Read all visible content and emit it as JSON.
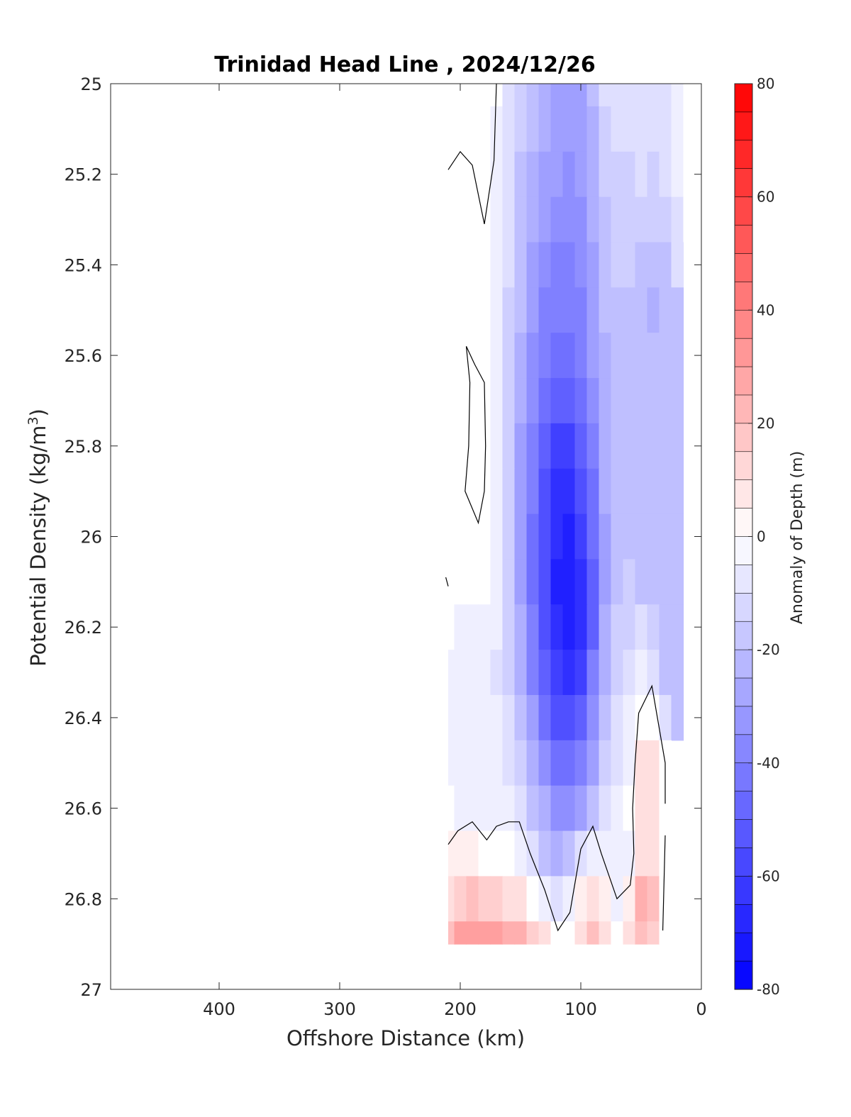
{
  "chart_data": {
    "type": "contour",
    "title": "Trinidad Head Line , 2024/12/26",
    "xlabel": "Offshore Distance (km)",
    "ylabel_main": "Potential Density (kg/m",
    "ylabel_sup": "3",
    "ylabel_close": ")",
    "xlim": [
      490,
      0
    ],
    "ylim": [
      25,
      27
    ],
    "y_reversed": true,
    "x_reversed": true,
    "grid": false,
    "xticks": [
      400,
      300,
      200,
      100,
      0
    ],
    "xtick_labels": [
      "400",
      "300",
      "200",
      "100",
      "0"
    ],
    "yticks": [
      25,
      25.2,
      25.4,
      25.6,
      25.8,
      26,
      26.2,
      26.4,
      26.6,
      26.8,
      27
    ],
    "ytick_labels": [
      "25",
      "25.2",
      "25.4",
      "25.6",
      "25.8",
      "26",
      "26.2",
      "26.4",
      "26.6",
      "26.8",
      "27"
    ],
    "colorbar": {
      "label": "Anomaly of Depth (m)",
      "range": [
        -80,
        80
      ],
      "step": 5,
      "ticks": [
        80,
        60,
        40,
        20,
        0,
        -20,
        -40,
        -60,
        -80
      ],
      "tick_labels": [
        "80",
        "60",
        "40",
        "20",
        "0",
        "-20",
        "-40",
        "-60",
        "-80"
      ],
      "max_color": "#ff0000",
      "mid_color": "#ffffff",
      "min_color": "#0000ff"
    },
    "field": {
      "x": [
        210,
        200,
        190,
        180,
        170,
        160,
        150,
        140,
        130,
        120,
        110,
        100,
        90,
        80,
        70,
        60,
        50,
        40,
        30,
        20,
        10
      ],
      "y": [
        25,
        25.1,
        25.2,
        25.3,
        25.4,
        25.5,
        25.6,
        25.7,
        25.8,
        25.9,
        26,
        26.1,
        26.2,
        26.3,
        26.4,
        26.5,
        26.6,
        26.7,
        26.8,
        26.9
      ],
      "values": [
        [
          null,
          null,
          null,
          null,
          -2,
          -8,
          -16,
          -20,
          -24,
          -28,
          -30,
          -28,
          -22,
          -12,
          -10,
          -10,
          -10,
          -12,
          -10,
          -6,
          -2
        ],
        [
          null,
          null,
          null,
          null,
          -3,
          -9,
          -17,
          -22,
          -26,
          -30,
          -32,
          -30,
          -23,
          -13,
          -11,
          -11,
          -10,
          -12,
          -10,
          -6,
          -2
        ],
        [
          null,
          null,
          null,
          null,
          -4,
          -10,
          -18,
          -24,
          -28,
          -32,
          -34,
          -31,
          -24,
          -15,
          -13,
          -13,
          -12,
          -13,
          -11,
          -7,
          -2
        ],
        [
          null,
          null,
          null,
          null,
          -5,
          -11,
          -19,
          -26,
          -31,
          -36,
          -37,
          -34,
          -26,
          -18,
          -15,
          -15,
          -14,
          -15,
          -14,
          -8,
          -2
        ],
        [
          null,
          null,
          null,
          null,
          -6,
          -12,
          -20,
          -28,
          -34,
          -39,
          -40,
          -36,
          -28,
          -20,
          -17,
          -17,
          -18,
          -18,
          -18,
          -10,
          null
        ],
        [
          null,
          null,
          null,
          null,
          -6,
          -13,
          -22,
          -31,
          -38,
          -42,
          -42,
          -38,
          -30,
          -22,
          -20,
          -20,
          -22,
          -24,
          -20,
          -20,
          null
        ],
        [
          null,
          null,
          null,
          null,
          -7,
          -14,
          -24,
          -34,
          -42,
          -46,
          -46,
          -41,
          -32,
          -24,
          -22,
          -22,
          -22,
          -22,
          -22,
          -22,
          null
        ],
        [
          null,
          null,
          null,
          null,
          -7,
          -15,
          -26,
          -37,
          -47,
          -52,
          -52,
          -46,
          -36,
          -25,
          -22,
          -22,
          -22,
          -22,
          -22,
          -22,
          null
        ],
        [
          null,
          null,
          null,
          null,
          -7,
          -16,
          -28,
          -40,
          -51,
          -58,
          -58,
          -52,
          -40,
          -26,
          -22,
          -22,
          -22,
          -22,
          -22,
          -22,
          null
        ],
        [
          null,
          null,
          null,
          null,
          -6,
          -16,
          -29,
          -42,
          -54,
          -63,
          -64,
          -57,
          -43,
          -27,
          -22,
          -22,
          -22,
          -22,
          -22,
          -22,
          null
        ],
        [
          null,
          null,
          null,
          -1,
          -5,
          -15,
          -29,
          -43,
          -56,
          -66,
          -69,
          -62,
          -46,
          -28,
          -22,
          -22,
          -22,
          -22,
          -22,
          -22,
          null
        ],
        [
          null,
          null,
          -1,
          -2,
          -5,
          -14,
          -28,
          -43,
          -57,
          -68,
          -72,
          -66,
          -48,
          -28,
          -20,
          -17,
          -18,
          -22,
          -22,
          -22,
          null
        ],
        [
          -2,
          -3,
          -4,
          -5,
          -6,
          -14,
          -26,
          -42,
          -56,
          -67,
          -72,
          -67,
          -48,
          -27,
          -17,
          -14,
          -12,
          -17,
          -22,
          -22,
          null
        ],
        [
          -4,
          -5,
          -3,
          -6,
          -8,
          -13,
          -24,
          -38,
          -52,
          -62,
          -66,
          -61,
          -42,
          -24,
          -14,
          -9,
          -5,
          -8,
          -18,
          -22,
          null
        ],
        [
          -4,
          -5,
          -5,
          -6,
          -7,
          -12,
          -20,
          -32,
          -45,
          -54,
          -57,
          -52,
          -35,
          -20,
          -11,
          -6,
          2,
          1,
          -8,
          -22,
          null
        ],
        [
          -4,
          -5,
          -5,
          -6,
          -7,
          -10,
          -16,
          -25,
          -36,
          -44,
          -46,
          -42,
          -28,
          -16,
          -9,
          -3,
          8,
          10,
          -2,
          null,
          null
        ],
        [
          -2,
          -3,
          -3,
          -4,
          -5,
          -6,
          -9,
          -18,
          -27,
          -33,
          -34,
          -30,
          -19,
          -11,
          -6,
          1,
          10,
          9,
          -2,
          null,
          null
        ],
        [
          3,
          4,
          5,
          2,
          2,
          1,
          -4,
          -12,
          -20,
          -24,
          -21,
          -12,
          -5,
          -5,
          -7,
          -3,
          10,
          12,
          -2,
          null,
          null
        ],
        [
          12,
          15,
          18,
          15,
          14,
          12,
          8,
          2,
          -6,
          -12,
          -6,
          6,
          10,
          6,
          -3,
          5,
          25,
          18,
          0,
          null,
          null
        ],
        [
          22,
          28,
          32,
          30,
          28,
          26,
          24,
          16,
          8,
          -2,
          2,
          10,
          20,
          10,
          0,
          12,
          22,
          14,
          0,
          null,
          null
        ]
      ],
      "zero_contours": [
        [
          [
            170,
            25.0
          ],
          [
            172,
            25.17
          ],
          [
            180,
            25.31
          ],
          [
            190,
            25.18
          ],
          [
            200,
            25.15
          ],
          [
            210,
            25.19
          ]
        ],
        [
          [
            195,
            25.58
          ],
          [
            188,
            25.62
          ],
          [
            180,
            25.66
          ],
          [
            179,
            25.8
          ],
          [
            180,
            25.9
          ],
          [
            185,
            25.97
          ],
          [
            196,
            25.9
          ],
          [
            193,
            25.8
          ],
          [
            192,
            25.66
          ],
          [
            195,
            25.58
          ]
        ],
        [
          [
            210,
            26.11
          ],
          [
            212,
            26.09
          ]
        ],
        [
          [
            210,
            26.68
          ],
          [
            202,
            26.65
          ],
          [
            190,
            26.63
          ],
          [
            178,
            26.67
          ],
          [
            170,
            26.64
          ],
          [
            160,
            26.63
          ],
          [
            151,
            26.63
          ],
          [
            142,
            26.7
          ],
          [
            130,
            26.78
          ],
          [
            119,
            26.87
          ],
          [
            109,
            26.83
          ],
          [
            100,
            26.69
          ],
          [
            90,
            26.64
          ],
          [
            83,
            26.7
          ],
          [
            70,
            26.8
          ],
          [
            59,
            26.77
          ],
          [
            56,
            26.7
          ],
          [
            57,
            26.6
          ],
          [
            55,
            26.5
          ],
          [
            52,
            26.39
          ],
          [
            41,
            26.33
          ],
          [
            30,
            26.5
          ],
          [
            30,
            26.59
          ]
        ],
        [
          [
            30,
            26.66
          ],
          [
            32,
            26.87
          ]
        ]
      ]
    }
  }
}
